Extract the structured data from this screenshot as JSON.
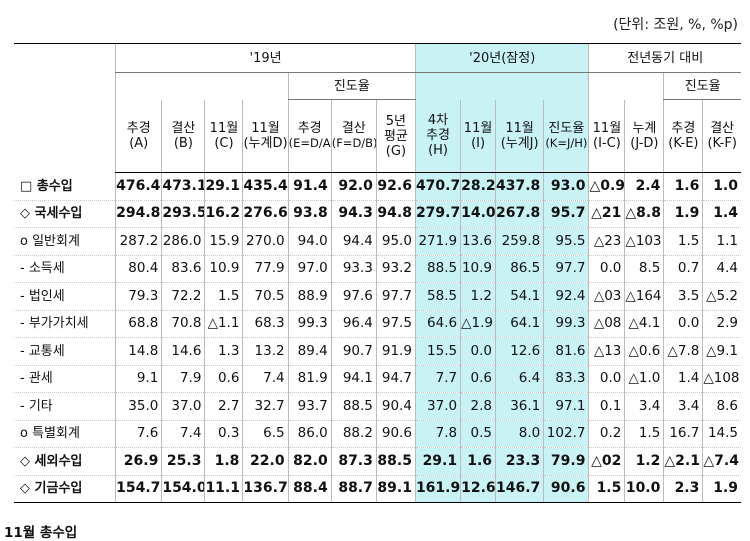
{
  "unit_note": "(단위: 조원, %, %p)",
  "header": {
    "group_2019": "'19년",
    "progress_2019": "진도율",
    "group_2020": "'20년(잠정)",
    "group_yoy": "전년동기 대비",
    "progress_yoy": "진도율",
    "cols": [
      {
        "l1": "추경",
        "l2": "(A)"
      },
      {
        "l1": "결산",
        "l2": "(B)"
      },
      {
        "l1": "11월",
        "l2": "(C)"
      },
      {
        "l1": "11월",
        "l2": "(누계D)"
      },
      {
        "l1": "추경",
        "l2": "(E=D/A)"
      },
      {
        "l1": "결산",
        "l2": "(F=D/B)"
      },
      {
        "l1": "5년",
        "l2": "평균",
        "l3": "(G)"
      },
      {
        "l1": "4차",
        "l2": "추경",
        "l3": "(H)"
      },
      {
        "l1": "11월",
        "l2": "(I)"
      },
      {
        "l1": "11월",
        "l2": "(누계J)"
      },
      {
        "l1": "진도율",
        "l2": "(K=J/H)"
      },
      {
        "l1": "11월",
        "l2": "(I-C)"
      },
      {
        "l1": "누계",
        "l2": "(J-D)"
      },
      {
        "l1": "추경",
        "l2": "(K-E)"
      },
      {
        "l1": "결산",
        "l2": "(K-F)"
      }
    ]
  },
  "rows": [
    {
      "label": "□ 총수입",
      "bold": true,
      "values": [
        "476.4",
        "473.1",
        "29.1",
        "435.4",
        "91.4",
        "92.0",
        "92.6",
        "470.7",
        "28.2",
        "437.8",
        "93.0",
        "△0.9",
        "2.4",
        "1.6",
        "1.0"
      ]
    },
    {
      "label": "◇ 국세수입",
      "bold": true,
      "values": [
        "294.8",
        "293.5",
        "16.2",
        "276.6",
        "93.8",
        "94.3",
        "94.8",
        "279.7",
        "14.0",
        "267.8",
        "95.7",
        "△21",
        "△8.8",
        "1.9",
        "1.4"
      ]
    },
    {
      "label": "o 일반회계",
      "bold": false,
      "values": [
        "287.2",
        "286.0",
        "15.9",
        "270.0",
        "94.0",
        "94.4",
        "95.0",
        "271.9",
        "13.6",
        "259.8",
        "95.5",
        "△23",
        "△103",
        "1.5",
        "1.1"
      ]
    },
    {
      "label": "- 소득세",
      "bold": false,
      "values": [
        "80.4",
        "83.6",
        "10.9",
        "77.9",
        "97.0",
        "93.3",
        "93.2",
        "88.5",
        "10.9",
        "86.5",
        "97.7",
        "0.0",
        "8.5",
        "0.7",
        "4.4"
      ]
    },
    {
      "label": "- 법인세",
      "bold": false,
      "values": [
        "79.3",
        "72.2",
        "1.5",
        "70.5",
        "88.9",
        "97.6",
        "97.7",
        "58.5",
        "1.2",
        "54.1",
        "92.4",
        "△03",
        "△164",
        "3.5",
        "△5.2"
      ]
    },
    {
      "label": "- 부가가치세",
      "bold": false,
      "values": [
        "68.8",
        "70.8",
        "△1.1",
        "68.3",
        "99.3",
        "96.4",
        "97.5",
        "64.6",
        "△1.9",
        "64.1",
        "99.3",
        "△08",
        "△4.1",
        "0.0",
        "2.9"
      ]
    },
    {
      "label": "- 교통세",
      "bold": false,
      "values": [
        "14.8",
        "14.6",
        "1.3",
        "13.2",
        "89.4",
        "90.7",
        "91.9",
        "15.5",
        "0.0",
        "12.6",
        "81.6",
        "△13",
        "△0.6",
        "△7.8",
        "△9.1"
      ]
    },
    {
      "label": "- 관세",
      "bold": false,
      "values": [
        "9.1",
        "7.9",
        "0.6",
        "7.4",
        "81.9",
        "94.1",
        "94.7",
        "7.7",
        "0.6",
        "6.4",
        "83.3",
        "0.0",
        "△1.0",
        "1.4",
        "△108"
      ]
    },
    {
      "label": "- 기타",
      "bold": false,
      "values": [
        "35.0",
        "37.0",
        "2.7",
        "32.7",
        "93.7",
        "88.5",
        "90.4",
        "37.0",
        "2.8",
        "36.1",
        "97.1",
        "0.1",
        "3.4",
        "3.4",
        "8.6"
      ]
    },
    {
      "label": "o 특별회계",
      "bold": false,
      "values": [
        "7.6",
        "7.4",
        "0.3",
        "6.5",
        "86.0",
        "88.2",
        "90.6",
        "7.8",
        "0.5",
        "8.0",
        "102.7",
        "0.2",
        "1.5",
        "16.7",
        "14.5"
      ]
    },
    {
      "label": "◇ 세외수입",
      "bold": true,
      "values": [
        "26.9",
        "25.3",
        "1.8",
        "22.0",
        "82.0",
        "87.3",
        "88.5",
        "29.1",
        "1.6",
        "23.3",
        "79.9",
        "△02",
        "1.2",
        "△2.1",
        "△7.4"
      ]
    },
    {
      "label": "◇ 기금수입",
      "bold": true,
      "values": [
        "154.7",
        "154.0",
        "11.1",
        "136.7",
        "88.4",
        "88.7",
        "89.1",
        "161.9",
        "12.6",
        "146.7",
        "90.6",
        "1.5",
        "10.0",
        "2.3",
        "1.9"
      ]
    }
  ],
  "caption": "11월 총수입"
}
